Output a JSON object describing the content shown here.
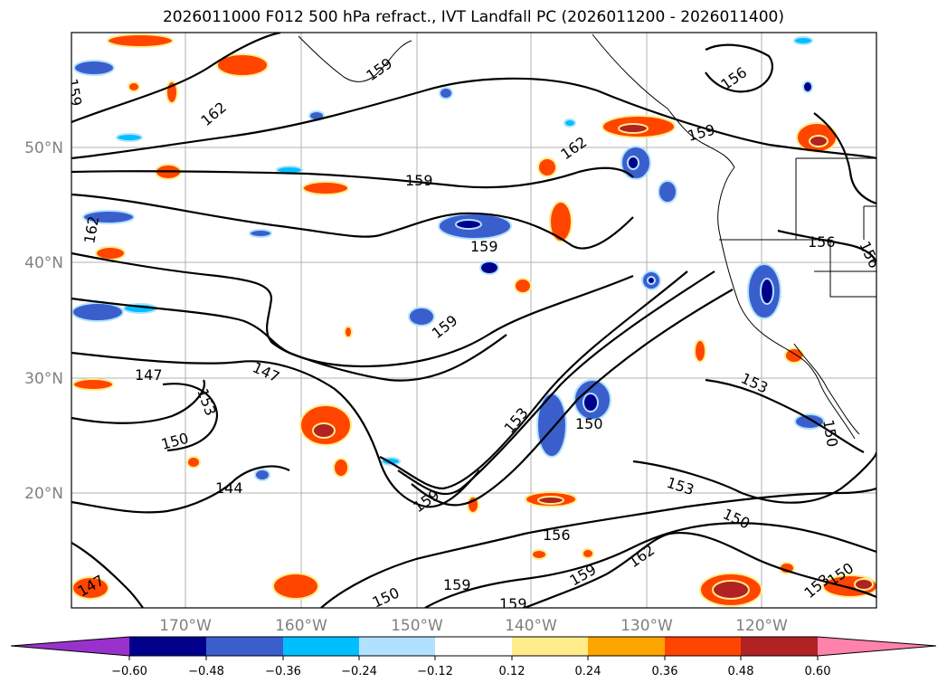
{
  "title": "2026011000 F012 500 hPa refract., IVT Landfall PC (2026011200 - 2026011400)",
  "map": {
    "lat_labels": [
      "50°N",
      "40°N",
      "30°N",
      "20°N"
    ],
    "lon_labels": [
      "170°W",
      "160°W",
      "150°W",
      "140°W",
      "130°W",
      "120°W"
    ],
    "contour_labels": [
      "159",
      "162",
      "159",
      "156",
      "162",
      "159",
      "159",
      "159",
      "156",
      "156",
      "162",
      "159",
      "147",
      "147",
      "153",
      "150",
      "144",
      "153",
      "150",
      "153",
      "150",
      "159",
      "156",
      "159",
      "162",
      "150",
      "159",
      "159",
      "150",
      "150",
      "153",
      "153",
      "147"
    ]
  },
  "colorbar": {
    "ticks": [
      "−0.60",
      "−0.48",
      "−0.36",
      "−0.24",
      "−0.12",
      "0.12",
      "0.24",
      "0.36",
      "0.48",
      "0.60"
    ],
    "colors": [
      "#9932CC",
      "#00008B",
      "#3A5FCD",
      "#00BFFF",
      "#B0E2FF",
      "#FFFFFF",
      "#FFEC8B",
      "#FFA500",
      "#FF4500",
      "#B22222",
      "#FF82AB"
    ]
  }
}
